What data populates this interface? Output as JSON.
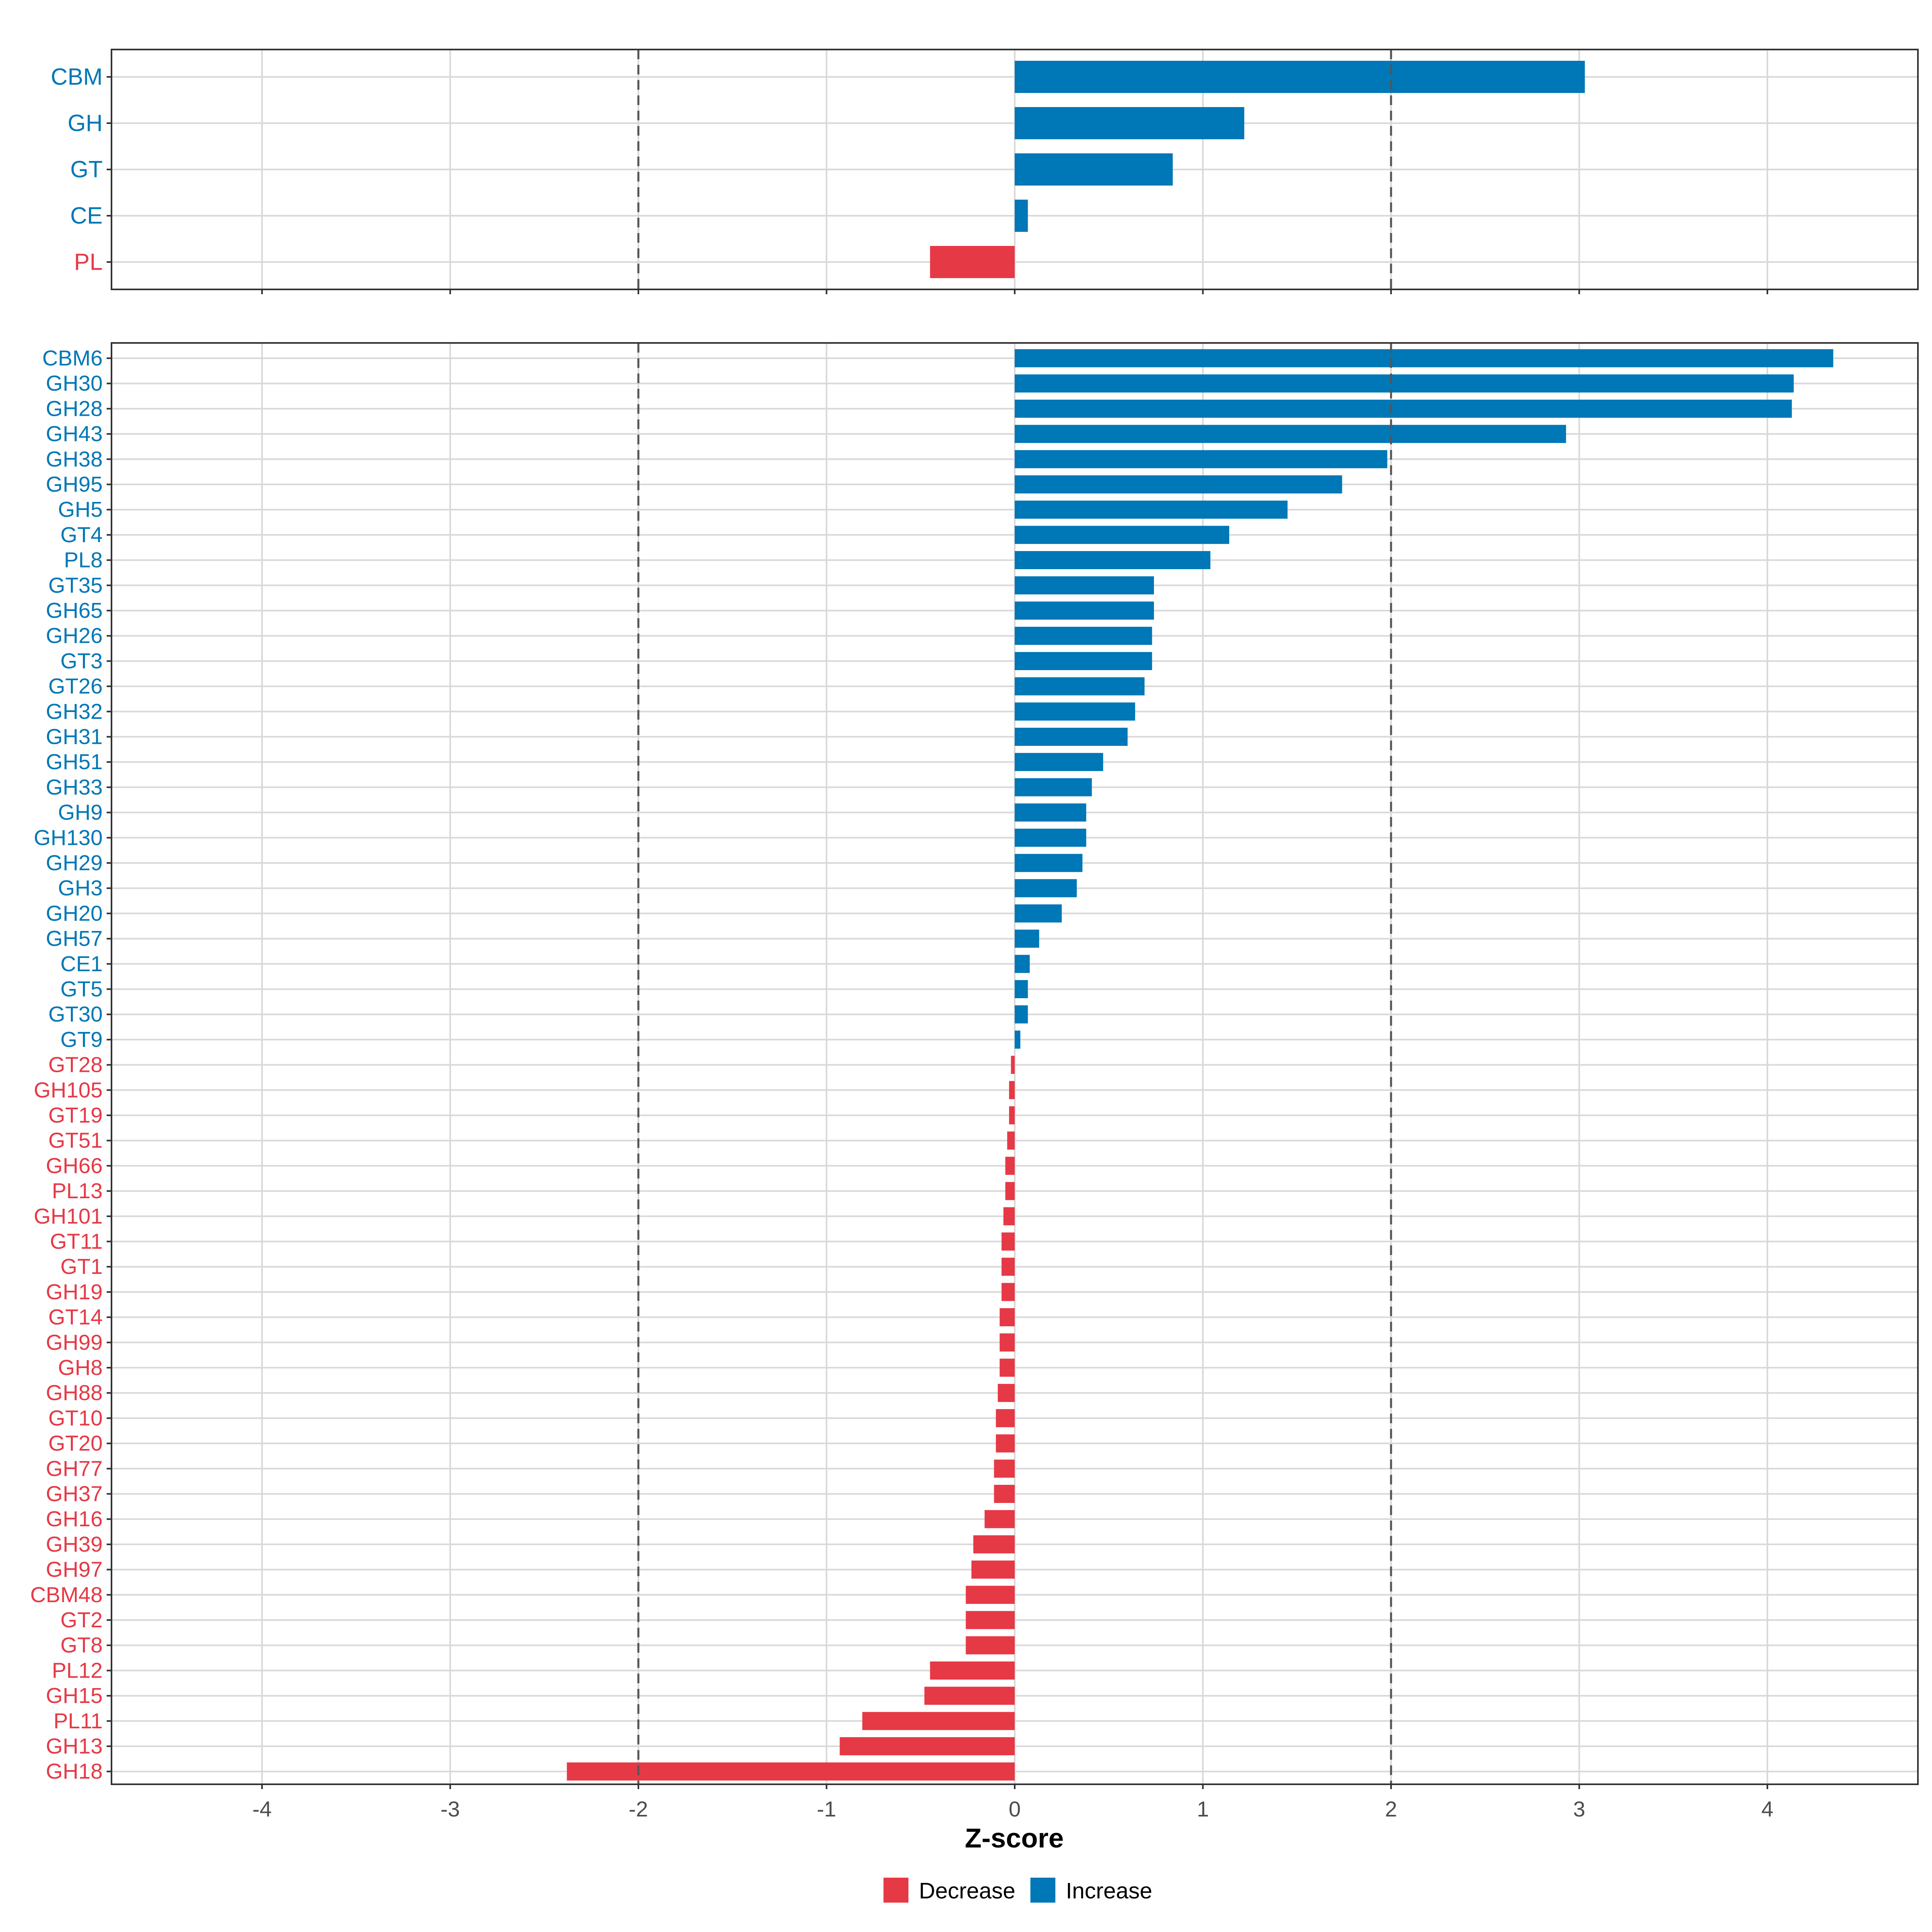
{
  "chart_data": [
    {
      "id": "top",
      "type": "bar",
      "orientation": "horizontal",
      "categories": [
        "CBM",
        "GH",
        "GT",
        "CE",
        "PL"
      ],
      "values": [
        3.03,
        1.22,
        0.84,
        0.07,
        -0.45
      ],
      "xlim": [
        -4.8,
        4.8
      ],
      "grid": true,
      "reference_lines": [
        -2,
        2
      ]
    },
    {
      "id": "bottom",
      "type": "bar",
      "orientation": "horizontal",
      "categories": [
        "CBM6",
        "GH30",
        "GH28",
        "GH43",
        "GH38",
        "GH95",
        "GH5",
        "GT4",
        "PL8",
        "GT35",
        "GH65",
        "GH26",
        "GT3",
        "GT26",
        "GH32",
        "GH31",
        "GH51",
        "GH33",
        "GH9",
        "GH130",
        "GH29",
        "GH3",
        "GH20",
        "GH57",
        "CE1",
        "GT5",
        "GT30",
        "GT9",
        "GT28",
        "GH105",
        "GT19",
        "GT51",
        "GH66",
        "PL13",
        "GH101",
        "GT11",
        "GT1",
        "GH19",
        "GT14",
        "GH99",
        "GH8",
        "GH88",
        "GT10",
        "GT20",
        "GH77",
        "GH37",
        "GH16",
        "GH39",
        "GH97",
        "CBM48",
        "GT2",
        "GT8",
        "PL12",
        "GH15",
        "PL11",
        "GH13",
        "GH18"
      ],
      "values": [
        4.35,
        4.14,
        4.13,
        2.93,
        1.98,
        1.74,
        1.45,
        1.14,
        1.04,
        0.74,
        0.74,
        0.73,
        0.73,
        0.69,
        0.64,
        0.6,
        0.47,
        0.41,
        0.38,
        0.38,
        0.36,
        0.33,
        0.25,
        0.13,
        0.08,
        0.07,
        0.07,
        0.03,
        -0.02,
        -0.03,
        -0.03,
        -0.04,
        -0.05,
        -0.05,
        -0.06,
        -0.07,
        -0.07,
        -0.07,
        -0.08,
        -0.08,
        -0.08,
        -0.09,
        -0.1,
        -0.1,
        -0.11,
        -0.11,
        -0.16,
        -0.22,
        -0.23,
        -0.26,
        -0.26,
        -0.26,
        -0.45,
        -0.48,
        -0.81,
        -0.93,
        -2.38
      ],
      "xlim": [
        -4.8,
        4.8
      ],
      "xticks": [
        -4,
        -3,
        -2,
        -1,
        0,
        1,
        2,
        3,
        4
      ],
      "xtick_labels": [
        "-4",
        "-3",
        "-2",
        "-1",
        "0",
        "1",
        "2",
        "3",
        "4"
      ],
      "xlabel": "Z-score",
      "grid": true,
      "reference_lines": [
        -2,
        2
      ]
    }
  ],
  "legend": {
    "position": "bottom",
    "items": [
      {
        "label": "Decrease",
        "color": "#E63946"
      },
      {
        "label": "Increase",
        "color": "#0077B6"
      }
    ]
  },
  "colors": {
    "increase": "#0077B6",
    "decrease": "#E63946",
    "grid": "#D9D9D9",
    "axis_text": "#4D4D4D",
    "border": "#333333",
    "refline": "#555555"
  }
}
